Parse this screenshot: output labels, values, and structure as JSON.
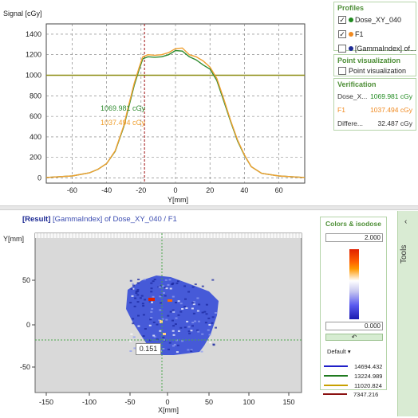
{
  "profile_chart": {
    "title_y": "Signal [cGy]",
    "xlabel": "Y[mm]",
    "y_ticks": [
      "1400",
      "1200",
      "1000",
      "800",
      "600",
      "400",
      "200",
      "0"
    ],
    "x_ticks": [
      "-60",
      "-40",
      "-20",
      "0",
      "20",
      "40",
      "60"
    ],
    "annotation_green": "1069.981 cGy",
    "annotation_orange": "1037.494 cGy",
    "colors": {
      "green": "#2e8b2e",
      "orange": "#f0a030",
      "olive": "#8a8a10",
      "marker": "#a01010"
    }
  },
  "chart_data": {
    "type": "line",
    "xlim": [
      -75,
      75
    ],
    "ylim": [
      -50,
      1500
    ],
    "x_ticks": [
      -60,
      -40,
      -20,
      0,
      20,
      40,
      60
    ],
    "y_ticks": [
      0,
      200,
      400,
      600,
      800,
      1000,
      1200,
      1400
    ],
    "grid": true,
    "series": [
      {
        "name": "Dose_XY_040",
        "x": [
          -75,
          -60,
          -50,
          -45,
          -40,
          -35,
          -30,
          -27,
          -24,
          -21,
          -19,
          -16,
          -12,
          -8,
          -4,
          0,
          4,
          8,
          12,
          16,
          20,
          24,
          28,
          32,
          36,
          40,
          44,
          50,
          60,
          70,
          75
        ],
        "y": [
          5,
          20,
          50,
          85,
          140,
          260,
          500,
          700,
          900,
          1060,
          1160,
          1180,
          1175,
          1180,
          1200,
          1240,
          1235,
          1180,
          1150,
          1100,
          1060,
          950,
          750,
          550,
          360,
          220,
          110,
          45,
          20,
          10,
          5
        ]
      },
      {
        "name": "F1",
        "x": [
          -75,
          -60,
          -50,
          -45,
          -40,
          -35,
          -30,
          -27,
          -24,
          -21,
          -19,
          -16,
          -12,
          -8,
          -4,
          0,
          4,
          8,
          12,
          16,
          20,
          24,
          28,
          32,
          36,
          40,
          44,
          50,
          60,
          70,
          75
        ],
        "y": [
          5,
          20,
          50,
          85,
          140,
          265,
          510,
          720,
          920,
          1080,
          1180,
          1200,
          1195,
          1200,
          1220,
          1260,
          1265,
          1200,
          1180,
          1140,
          1080,
          970,
          770,
          560,
          370,
          225,
          110,
          45,
          20,
          10,
          5
        ]
      }
    ],
    "hline": 1000,
    "vline": -18
  },
  "side": {
    "profiles_title": "Profiles",
    "profiles": [
      {
        "label": "Dose_XY_040",
        "checked": true,
        "color": "#1f8a1f"
      },
      {
        "label": "F1",
        "checked": true,
        "color": "#f08a20"
      },
      {
        "label": "[GammaIndex] of...",
        "checked": false,
        "color": "#1d2a94"
      }
    ],
    "point_title": "Point visualization",
    "point_label": "Point visualization",
    "verification_title": "Verification",
    "verification": [
      {
        "name": "Dose_X...",
        "value": "1069.981 cGy",
        "color": "#1f8a1f"
      },
      {
        "name": "F1",
        "value": "1037.494 cGy",
        "color": "#f08a20"
      },
      {
        "name": "Differe...",
        "value": "32.487 cGy",
        "color": "#333333"
      }
    ]
  },
  "map": {
    "title_prefix": "[Result]",
    "title_rest": "[GammaIndex] of Dose_XY_040 / F1",
    "ylabel": "Y[mm]",
    "xlabel": "X[mm]",
    "y_ticks": [
      "50",
      "0",
      "-50"
    ],
    "x_ticks": [
      "-150",
      "-100",
      "-50",
      "0",
      "50",
      "100",
      "150"
    ],
    "cursor_value": "0.151"
  },
  "isodose": {
    "title": "Colors & isodose",
    "max_value": "2.000",
    "min_value": "0.000",
    "reset_icon": "undo-icon",
    "default_label": "Default",
    "levels": [
      {
        "value": "14694.432",
        "color": "#1f1fc8"
      },
      {
        "value": "13224.989",
        "color": "#1f7a1f"
      },
      {
        "value": "11020.824",
        "color": "#c8a000"
      },
      {
        "value": "7347.216",
        "color": "#8a1010"
      }
    ]
  },
  "tools": {
    "label": "Tools",
    "icon": "chevron-up-icon"
  }
}
